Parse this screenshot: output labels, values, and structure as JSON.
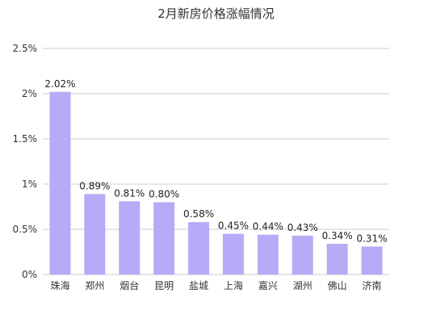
{
  "chart_data": {
    "type": "bar",
    "title": "2月新房价格涨幅情况",
    "categories": [
      "珠海",
      "郑州",
      "烟台",
      "昆明",
      "盐城",
      "上海",
      "嘉兴",
      "湖州",
      "佛山",
      "济南"
    ],
    "values": [
      2.02,
      0.89,
      0.81,
      0.8,
      0.58,
      0.45,
      0.44,
      0.43,
      0.34,
      0.31
    ],
    "value_labels": [
      "2.02%",
      "0.89%",
      "0.81%",
      "0.80%",
      "0.58%",
      "0.45%",
      "0.44%",
      "0.43%",
      "0.34%",
      "0.31%"
    ],
    "ylim": [
      0,
      2.5
    ],
    "yticks": [
      0,
      0.5,
      1,
      1.5,
      2,
      2.5
    ],
    "ytick_labels": [
      "0%",
      "0.5%",
      "1%",
      "1.5%",
      "2%",
      "2.5%"
    ],
    "xlabel": "",
    "ylabel": "",
    "grid": true,
    "legend": "none",
    "colors": {
      "bar": "#b7aaf7",
      "grid": "#cccccc",
      "axis_text": "#333333",
      "label_text": "#222222"
    }
  }
}
